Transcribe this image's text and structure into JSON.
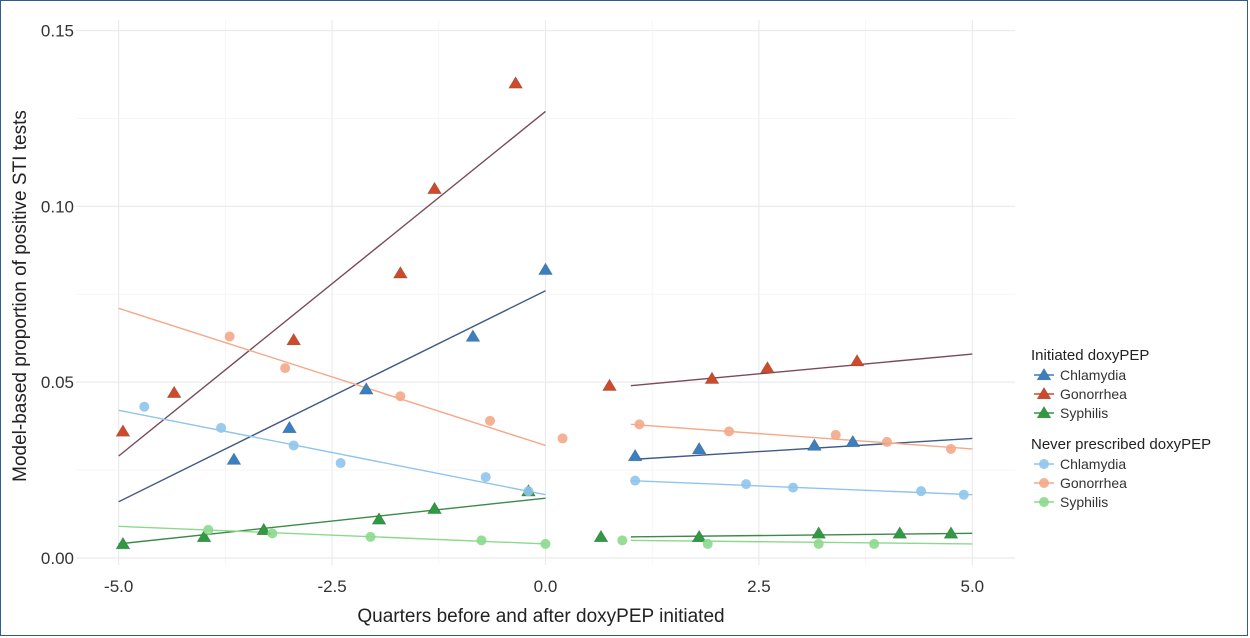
{
  "chart_data": {
    "type": "scatter",
    "xlabel": "Quarters before and after doxyPEP initiated",
    "ylabel": "Model-based proportion of positive STI tests",
    "xlim": [
      -5.5,
      5.5
    ],
    "ylim": [
      -0.002,
      0.153
    ],
    "x_ticks": [
      "-5.0",
      "-2.5",
      "0.0",
      "2.5",
      "5.0"
    ],
    "x_tick_values": [
      -5,
      -2.5,
      0,
      2.5,
      5
    ],
    "y_ticks": [
      "0.00",
      "0.05",
      "0.10",
      "0.15"
    ],
    "y_tick_values": [
      0,
      0.05,
      0.1,
      0.15
    ],
    "grid": true,
    "legend_position": "right",
    "legend_groups": [
      {
        "title": "Initiated doxyPEP",
        "marker": "triangle",
        "items": [
          "Chlamydia",
          "Gonorrhea",
          "Syphilis"
        ]
      },
      {
        "title": "Never prescribed doxyPEP",
        "marker": "circle",
        "items": [
          "Chlamydia",
          "Gonorrhea",
          "Syphilis"
        ]
      }
    ],
    "series": [
      {
        "name": "Chlamydia",
        "group": "Initiated doxyPEP",
        "marker": "triangle",
        "color": "#3a7fc0",
        "points": [
          [
            -3.65,
            0.028
          ],
          [
            -3.0,
            0.037
          ],
          [
            -2.1,
            0.048
          ],
          [
            -0.85,
            0.063
          ],
          [
            0.0,
            0.082
          ],
          [
            1.05,
            0.029
          ],
          [
            1.8,
            0.031
          ],
          [
            3.15,
            0.032
          ],
          [
            3.6,
            0.033
          ]
        ],
        "fit": [
          [
            [
              -5,
              0.016
            ],
            [
              0,
              0.076
            ]
          ],
          [
            [
              1,
              0.028
            ],
            [
              5,
              0.034
            ]
          ]
        ]
      },
      {
        "name": "Gonorrhea",
        "group": "Initiated doxyPEP",
        "marker": "triangle",
        "color": "#cf4a2a",
        "points": [
          [
            -4.95,
            0.036
          ],
          [
            -4.35,
            0.047
          ],
          [
            -2.95,
            0.062
          ],
          [
            -1.7,
            0.081
          ],
          [
            -1.3,
            0.105
          ],
          [
            -0.35,
            0.135
          ],
          [
            0.75,
            0.049
          ],
          [
            1.95,
            0.051
          ],
          [
            2.6,
            0.054
          ],
          [
            3.65,
            0.056
          ]
        ],
        "fit": [
          [
            [
              -5,
              0.029
            ],
            [
              0,
              0.127
            ]
          ],
          [
            [
              1,
              0.049
            ],
            [
              5,
              0.058
            ]
          ]
        ]
      },
      {
        "name": "Syphilis",
        "group": "Initiated doxyPEP",
        "marker": "triangle",
        "color": "#2f9a42",
        "points": [
          [
            -4.95,
            0.004
          ],
          [
            -4.0,
            0.006
          ],
          [
            -3.3,
            0.008
          ],
          [
            -1.95,
            0.011
          ],
          [
            -1.3,
            0.014
          ],
          [
            -0.2,
            0.019
          ],
          [
            0.65,
            0.006
          ],
          [
            1.8,
            0.006
          ],
          [
            3.2,
            0.007
          ],
          [
            4.15,
            0.007
          ],
          [
            4.75,
            0.007
          ]
        ],
        "fit": [
          [
            [
              -5,
              0.004
            ],
            [
              0,
              0.017
            ]
          ],
          [
            [
              1,
              0.006
            ],
            [
              5,
              0.007
            ]
          ]
        ]
      },
      {
        "name": "Chlamydia",
        "group": "Never prescribed doxyPEP",
        "marker": "circle",
        "color": "#8fc4ec",
        "points": [
          [
            -4.7,
            0.043
          ],
          [
            -3.8,
            0.037
          ],
          [
            -2.95,
            0.032
          ],
          [
            -2.4,
            0.027
          ],
          [
            -0.7,
            0.023
          ],
          [
            -0.2,
            0.019
          ],
          [
            1.05,
            0.022
          ],
          [
            2.35,
            0.021
          ],
          [
            2.9,
            0.02
          ],
          [
            4.4,
            0.019
          ],
          [
            4.9,
            0.018
          ]
        ],
        "fit": [
          [
            [
              -5,
              0.042
            ],
            [
              0,
              0.018
            ]
          ],
          [
            [
              1,
              0.022
            ],
            [
              5,
              0.018
            ]
          ]
        ]
      },
      {
        "name": "Gonorrhea",
        "group": "Never prescribed doxyPEP",
        "marker": "circle",
        "color": "#f4a887",
        "points": [
          [
            -3.7,
            0.063
          ],
          [
            -3.05,
            0.054
          ],
          [
            -1.7,
            0.046
          ],
          [
            -0.65,
            0.039
          ],
          [
            0.2,
            0.034
          ],
          [
            1.1,
            0.038
          ],
          [
            2.15,
            0.036
          ],
          [
            3.4,
            0.035
          ],
          [
            4.0,
            0.033
          ],
          [
            4.75,
            0.031
          ]
        ],
        "fit": [
          [
            [
              -5,
              0.071
            ],
            [
              0,
              0.032
            ]
          ],
          [
            [
              1,
              0.038
            ],
            [
              5,
              0.031
            ]
          ]
        ]
      },
      {
        "name": "Syphilis",
        "group": "Never prescribed doxyPEP",
        "marker": "circle",
        "color": "#8bd98c",
        "points": [
          [
            -3.95,
            0.008
          ],
          [
            -3.2,
            0.007
          ],
          [
            -2.05,
            0.006
          ],
          [
            -0.75,
            0.005
          ],
          [
            0.0,
            0.004
          ],
          [
            0.9,
            0.005
          ],
          [
            1.9,
            0.004
          ],
          [
            3.2,
            0.004
          ],
          [
            3.85,
            0.004
          ]
        ],
        "fit": [
          [
            [
              -5,
              0.009
            ],
            [
              0,
              0.004
            ]
          ],
          [
            [
              1,
              0.005
            ],
            [
              5,
              0.004
            ]
          ]
        ]
      }
    ]
  }
}
